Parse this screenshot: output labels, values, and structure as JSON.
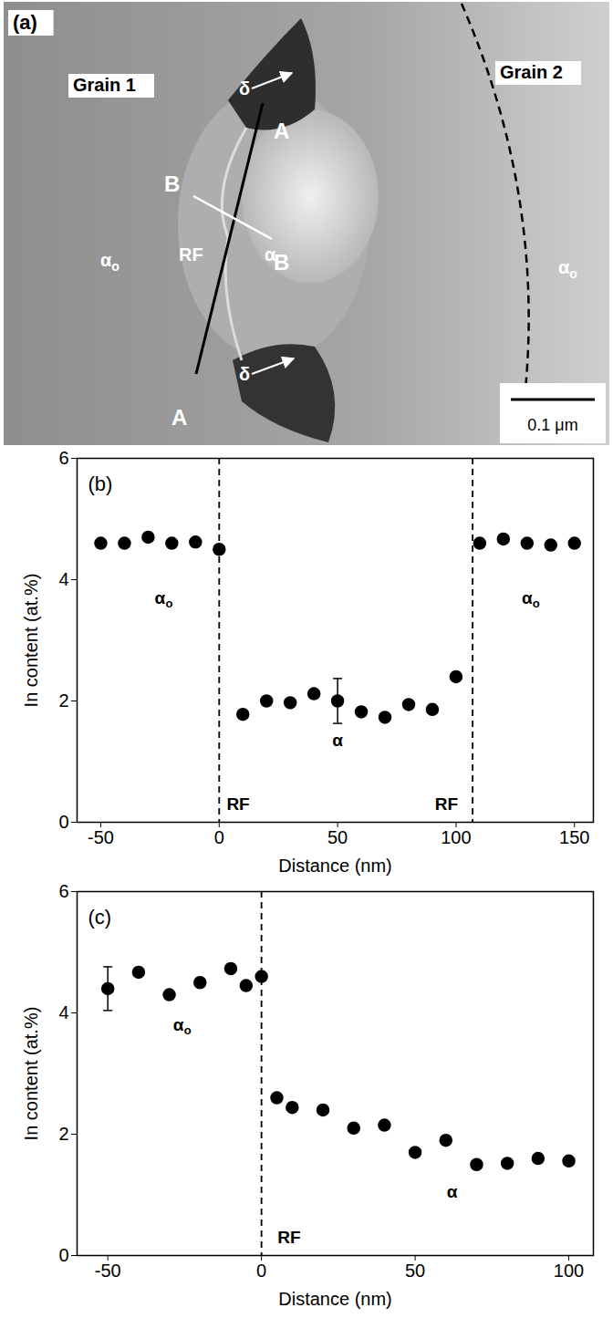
{
  "micrograph": {
    "labels": [
      "(a)",
      "Grain 1",
      "Grain 2",
      "δ",
      "δ",
      "A",
      "A",
      "B",
      "B",
      "RF",
      "α"
    ],
    "subscripted_labels": [
      {
        "text": "α",
        "sub": "o"
      },
      {
        "text": "α",
        "sub": "o"
      }
    ],
    "scale_bar": "0.1 μm"
  },
  "chart_data": [
    {
      "type": "scatter",
      "panel": "(b)",
      "x": [
        -50,
        -40,
        -30,
        -20,
        -10,
        0,
        10,
        20,
        30,
        40,
        50,
        60,
        70,
        80,
        90,
        100,
        110,
        120,
        130,
        140,
        150
      ],
      "values": [
        4.6,
        4.6,
        4.7,
        4.6,
        4.62,
        4.5,
        1.78,
        2.0,
        1.97,
        2.12,
        2.0,
        1.82,
        1.73,
        1.94,
        1.86,
        2.4,
        4.6,
        4.67,
        4.6,
        4.57,
        4.6
      ],
      "errors": [
        null,
        null,
        null,
        null,
        null,
        null,
        null,
        null,
        null,
        null,
        0.37,
        null,
        null,
        null,
        null,
        null,
        null,
        null,
        null,
        null,
        null
      ],
      "xlabel": "Distance (nm)",
      "ylabel": "In content (at.%)",
      "xlim": [
        -60,
        158
      ],
      "ylim": [
        0,
        6
      ],
      "xticks": [
        -50,
        0,
        50,
        100,
        150
      ],
      "yticks": [
        0,
        2,
        4,
        6
      ],
      "color": "#000000",
      "marker": "circle",
      "boundaries": [
        0,
        107
      ],
      "annotations": [
        {
          "text": "α",
          "sub": "o",
          "x": -25,
          "y": 3.7
        },
        {
          "text": "α",
          "x": 50,
          "y": 1.35
        },
        {
          "text": "α",
          "sub": "o",
          "x": 130,
          "y": 3.7
        },
        {
          "text": "RF",
          "x": 8,
          "y": 0.3
        },
        {
          "text": "RF",
          "x": 96,
          "y": 0.3
        }
      ]
    },
    {
      "type": "scatter",
      "panel": "(c)",
      "x": [
        -50,
        -40,
        -30,
        -20,
        -10,
        -5,
        0,
        5,
        10,
        20,
        30,
        40,
        50,
        60,
        70,
        80,
        90,
        100
      ],
      "values": [
        4.4,
        4.67,
        4.3,
        4.5,
        4.73,
        4.45,
        4.6,
        2.6,
        2.44,
        2.4,
        2.1,
        2.15,
        1.7,
        1.9,
        1.5,
        1.52,
        1.6,
        1.56
      ],
      "errors": [
        0.36,
        null,
        null,
        null,
        null,
        null,
        null,
        null,
        null,
        null,
        null,
        null,
        null,
        null,
        null,
        null,
        null,
        null
      ],
      "xlabel": "Distance (nm)",
      "ylabel": "In content (at.%)",
      "xlim": [
        -60,
        108
      ],
      "ylim": [
        0,
        6
      ],
      "xticks": [
        -50,
        0,
        50,
        100
      ],
      "yticks": [
        0,
        2,
        4,
        6
      ],
      "color": "#000000",
      "marker": "circle",
      "boundaries": [
        0
      ],
      "annotations": [
        {
          "text": "α",
          "sub": "o",
          "x": -27,
          "y": 3.8
        },
        {
          "text": "RF",
          "x": 9,
          "y": 0.3
        },
        {
          "text": "α",
          "x": 62,
          "y": 1.05
        }
      ]
    }
  ]
}
